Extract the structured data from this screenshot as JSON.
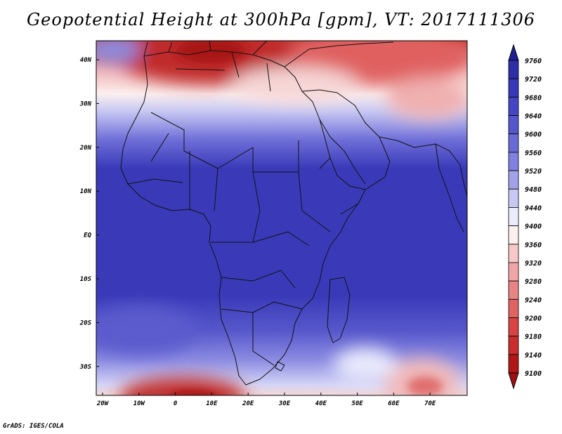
{
  "title": "Geopotential Height at 300hPa [gpm], VT: 2017111306",
  "credit": "GrADS: IGES/COLA",
  "map": {
    "lon_labels": [
      "20W",
      "10W",
      "0",
      "10E",
      "20E",
      "30E",
      "40E",
      "50E",
      "60E",
      "70E"
    ],
    "lat_labels": [
      "40N",
      "30N",
      "20N",
      "10N",
      "EQ",
      "10S",
      "20S",
      "30S"
    ]
  },
  "colorbar": {
    "levels": [
      "9760",
      "9720",
      "9680",
      "9640",
      "9600",
      "9560",
      "9520",
      "9480",
      "9440",
      "9400",
      "9360",
      "9320",
      "9280",
      "9240",
      "9200",
      "9180",
      "9140",
      "9100"
    ],
    "colors": [
      "#2e2ea8",
      "#3838b8",
      "#4646c4",
      "#5656cc",
      "#6a6ad6",
      "#8080e0",
      "#a2a2ea",
      "#c8c8f4",
      "#ececfc",
      "#fff0f0",
      "#f6c8c8",
      "#f0a6a6",
      "#e88484",
      "#e06464",
      "#d84444",
      "#c82c2c",
      "#b01818"
    ]
  }
}
